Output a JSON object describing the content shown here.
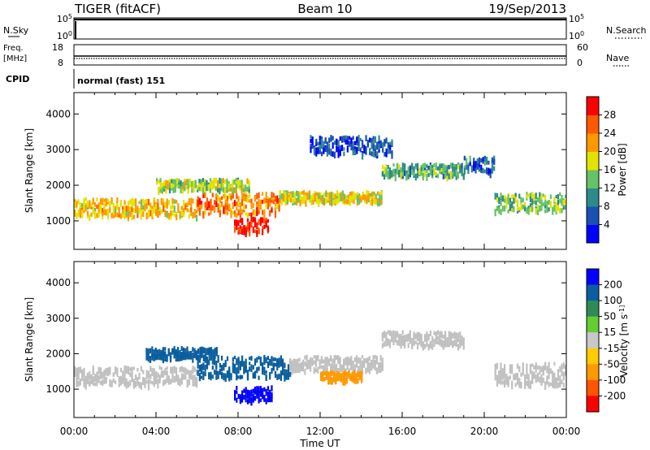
{
  "header": {
    "station": "TIGER (fitACF)",
    "beam": "Beam 10",
    "date": "19/Sep/2013"
  },
  "status": {
    "nsky_label": "N.Sky",
    "nsky_top": "10^5",
    "nsky_bottom": "10^0",
    "nsearch_label": "N.Search",
    "nsearch_top": "10^5",
    "nsearch_bottom": "10^0",
    "freq_label_1": "Freq.",
    "freq_label_2": "[MHz]",
    "freq_top": "18",
    "freq_bottom": "8",
    "nave_label": "Nave",
    "nave_top": "60",
    "nave_bottom": "0",
    "cpid_label": "CPID",
    "cpid_value": "normal (fast) 151"
  },
  "colors": {
    "power_scale": [
      "#0000ff",
      "#1a4fb4",
      "#2e8a8a",
      "#66c266",
      "#e3e300",
      "#ff9900",
      "#ff5a00",
      "#ff0000"
    ],
    "velocity_scale": [
      "#0000ff",
      "#0b5e9e",
      "#2e8b57",
      "#66cc33",
      "#c8c8c8",
      "#ffcc00",
      "#ff9900",
      "#ff5500",
      "#ff0000"
    ],
    "ground_scatter": "#c0c0c0"
  },
  "chart_data": [
    {
      "type": "heatmap",
      "name": "power",
      "ylabel": "Slant Range [km]",
      "y_ticks": [
        "1000",
        "2000",
        "3000",
        "4000"
      ],
      "ylim": [
        200,
        4600
      ],
      "xlim": [
        0,
        24
      ],
      "colorbar_label": "Power [dB]",
      "colorbar_ticks": [
        "4",
        "8",
        "12",
        "16",
        "20",
        "24",
        "28"
      ],
      "bands": [
        {
          "x_start": 0.0,
          "x_end": 6.0,
          "y_center": 1350,
          "y_halfwidth": 250,
          "value": 20
        },
        {
          "x_start": 6.0,
          "x_end": 10.0,
          "y_center": 1450,
          "y_halfwidth": 300,
          "value": 24
        },
        {
          "x_start": 7.8,
          "x_end": 9.5,
          "y_center": 850,
          "y_halfwidth": 200,
          "value": 30
        },
        {
          "x_start": 4.0,
          "x_end": 8.5,
          "y_center": 2000,
          "y_halfwidth": 150,
          "value": 16
        },
        {
          "x_start": 10.0,
          "x_end": 15.0,
          "y_center": 1650,
          "y_halfwidth": 150,
          "value": 18
        },
        {
          "x_start": 15.0,
          "x_end": 19.0,
          "y_center": 2400,
          "y_halfwidth": 170,
          "value": 12
        },
        {
          "x_start": 19.0,
          "x_end": 20.5,
          "y_center": 2550,
          "y_halfwidth": 220,
          "value": 8
        },
        {
          "x_start": 20.5,
          "x_end": 24.0,
          "y_center": 1500,
          "y_halfwidth": 250,
          "value": 14
        },
        {
          "x_start": 11.5,
          "x_end": 15.5,
          "y_center": 3100,
          "y_halfwidth": 250,
          "value": 6
        }
      ]
    },
    {
      "type": "heatmap",
      "name": "velocity",
      "xlabel": "Time UT",
      "ylabel": "Slant Range [km]",
      "x_ticks": [
        "00:00",
        "04:00",
        "08:00",
        "12:00",
        "16:00",
        "20:00",
        "00:00"
      ],
      "y_ticks": [
        "1000",
        "2000",
        "3000",
        "4000"
      ],
      "ylim": [
        200,
        4600
      ],
      "xlim": [
        0,
        24
      ],
      "colorbar_label": "Velocity [m s^-1]",
      "colorbar_ticks": [
        "200",
        "100",
        "50",
        "15",
        "-15",
        "-50",
        "-100",
        "-200"
      ],
      "bands": [
        {
          "x_start": 0.0,
          "x_end": 6.0,
          "y_center": 1350,
          "y_halfwidth": 250,
          "value": 0
        },
        {
          "x_start": 6.0,
          "x_end": 10.5,
          "y_center": 1600,
          "y_halfwidth": 300,
          "value": 180
        },
        {
          "x_start": 7.8,
          "x_end": 9.6,
          "y_center": 850,
          "y_halfwidth": 200,
          "value": 220
        },
        {
          "x_start": 3.5,
          "x_end": 7.0,
          "y_center": 2000,
          "y_halfwidth": 150,
          "value": 150
        },
        {
          "x_start": 10.5,
          "x_end": 15.0,
          "y_center": 1700,
          "y_halfwidth": 200,
          "value": 0
        },
        {
          "x_start": 15.0,
          "x_end": 19.0,
          "y_center": 2400,
          "y_halfwidth": 200,
          "value": 0
        },
        {
          "x_start": 20.5,
          "x_end": 24.0,
          "y_center": 1400,
          "y_halfwidth": 300,
          "value": 0
        },
        {
          "x_start": 12.0,
          "x_end": 14.0,
          "y_center": 1350,
          "y_halfwidth": 120,
          "value": -80
        }
      ]
    }
  ]
}
